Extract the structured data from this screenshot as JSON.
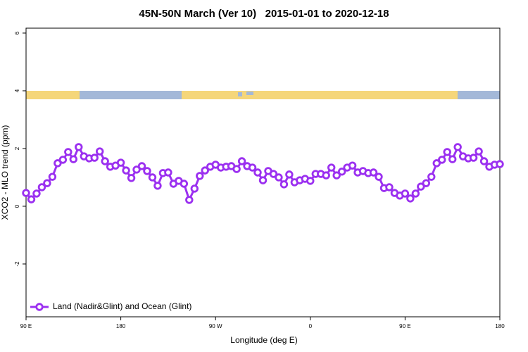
{
  "chart_data": {
    "type": "line",
    "title": "45N-50N March (Ver 10)   2015-01-01 to 2020-12-18",
    "x_label": "Longitude (deg E)",
    "y_label": "XCO2 - MLO trend (ppm)",
    "xlim": [
      90,
      540
    ],
    "ylim": [
      -3.83,
      6.17
    ],
    "xticks": [
      {
        "value": 90,
        "label": "90 E"
      },
      180,
      {
        "value": 270,
        "label": "90 W"
      },
      {
        "value": 360,
        "label": "0"
      },
      {
        "value": 450,
        "label": "90 E"
      },
      {
        "value": 540,
        "label": "180"
      }
    ],
    "yticks": [
      -2,
      0,
      2,
      4,
      6
    ],
    "legend": "bottom-left",
    "x": [
      90,
      95,
      100,
      105,
      110,
      115,
      120,
      125,
      130,
      135,
      140,
      145,
      150,
      155,
      160,
      165,
      170,
      175,
      180,
      185,
      190,
      195,
      200,
      205,
      210,
      215,
      220,
      225,
      230,
      235,
      240,
      245,
      250,
      255,
      260,
      265,
      270,
      275,
      280,
      285,
      290,
      295,
      300,
      305,
      310,
      315,
      320,
      325,
      330,
      335,
      340,
      345,
      350,
      355,
      360,
      365,
      370,
      375,
      380,
      385,
      390,
      395,
      400,
      405,
      410,
      415,
      420,
      425,
      430,
      435,
      440,
      445,
      450,
      455,
      460,
      465,
      470,
      475,
      480,
      485,
      490,
      495,
      500,
      505,
      510,
      515,
      520,
      525,
      530,
      535,
      540
    ],
    "series": [
      {
        "name": "Land (Nadir&Glint) and Ocean (Glint)",
        "color": "#9b30f0",
        "values": [
          0.46,
          0.24,
          0.44,
          0.66,
          0.8,
          1.02,
          1.49,
          1.61,
          1.88,
          1.63,
          2.05,
          1.73,
          1.66,
          1.68,
          1.9,
          1.56,
          1.37,
          1.41,
          1.51,
          1.24,
          0.98,
          1.27,
          1.39,
          1.22,
          1.0,
          0.71,
          1.15,
          1.17,
          0.78,
          0.88,
          0.78,
          0.22,
          0.61,
          1.05,
          1.24,
          1.37,
          1.44,
          1.34,
          1.37,
          1.39,
          1.29,
          1.56,
          1.39,
          1.34,
          1.17,
          0.9,
          1.22,
          1.12,
          1.0,
          0.76,
          1.1,
          0.83,
          0.9,
          0.95,
          0.88,
          1.12,
          1.12,
          1.07,
          1.34,
          1.07,
          1.2,
          1.34,
          1.41,
          1.17,
          1.22,
          1.15,
          1.17,
          1.02,
          0.63,
          0.66,
          0.46,
          0.37,
          0.44,
          0.27,
          0.44,
          0.68,
          0.8,
          1.02,
          1.49,
          1.61,
          1.88,
          1.63,
          2.05,
          1.73,
          1.66,
          1.68,
          1.9,
          1.56,
          1.37,
          1.44,
          1.46
        ]
      }
    ]
  }
}
